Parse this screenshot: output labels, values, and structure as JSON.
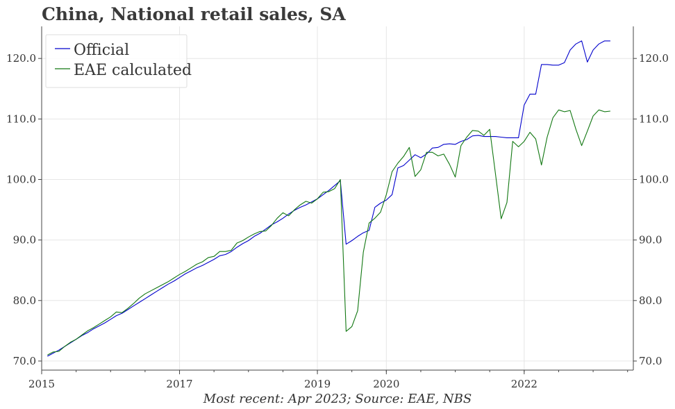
{
  "chart_data": {
    "type": "line",
    "title": "China, National retail sales, SA",
    "caption": "Most recent: Apr 2023; Source: EAE, NBS",
    "xlabel": "",
    "ylabel": "",
    "x_ticks": [
      "2015",
      "2017",
      "2019",
      "2020",
      "2022"
    ],
    "x_tick_years": [
      2015,
      2017,
      2019,
      2020,
      2022
    ],
    "y_ticks": [
      "70.0",
      "80.0",
      "90.0",
      "100.0",
      "110.0",
      "120.0"
    ],
    "y_tick_values": [
      70,
      80,
      90,
      100,
      110,
      120
    ],
    "xlim": [
      "2015-01",
      "2023-08"
    ],
    "ylim": [
      68.5,
      125.3
    ],
    "grid": true,
    "legend_position": "top-left",
    "colors": {
      "Official": "#0000cc",
      "EAE calculated": "#117711"
    },
    "series": [
      {
        "name": "Official",
        "x": [
          "2015-02",
          "2015-03",
          "2015-04",
          "2015-05",
          "2015-06",
          "2015-07",
          "2015-08",
          "2015-09",
          "2015-10",
          "2015-11",
          "2015-12",
          "2016-01",
          "2016-02",
          "2016-03",
          "2016-04",
          "2016-05",
          "2016-06",
          "2016-07",
          "2016-08",
          "2016-09",
          "2016-10",
          "2016-11",
          "2016-12",
          "2017-01",
          "2017-02",
          "2017-03",
          "2017-04",
          "2017-05",
          "2017-06",
          "2017-07",
          "2017-08",
          "2017-09",
          "2017-10",
          "2017-11",
          "2017-12",
          "2018-01",
          "2018-02",
          "2018-03",
          "2018-04",
          "2018-05",
          "2018-06",
          "2018-07",
          "2018-08",
          "2018-09",
          "2018-10",
          "2018-11",
          "2018-12",
          "2019-01",
          "2019-02",
          "2019-03",
          "2019-04",
          "2019-05",
          "2019-06",
          "2019-07",
          "2019-08",
          "2019-09",
          "2019-10",
          "2019-11",
          "2019-12",
          "2020-01",
          "2020-02",
          "2020-03",
          "2020-04",
          "2020-05",
          "2020-06",
          "2020-07",
          "2020-08",
          "2020-09",
          "2020-10",
          "2020-11",
          "2020-12",
          "2021-01",
          "2021-02",
          "2021-03",
          "2021-04",
          "2021-05",
          "2021-06",
          "2021-07",
          "2021-08",
          "2021-09",
          "2021-10",
          "2021-11",
          "2021-12",
          "2022-01",
          "2022-02",
          "2022-03",
          "2022-04",
          "2022-05",
          "2022-06",
          "2022-07",
          "2022-08",
          "2022-09",
          "2022-10",
          "2022-11",
          "2022-12",
          "2023-01",
          "2023-02",
          "2023-03",
          "2023-04"
        ],
        "values": [
          70.8,
          71.3,
          71.8,
          72.4,
          73.0,
          73.6,
          74.2,
          74.7,
          75.3,
          75.8,
          76.3,
          76.9,
          77.5,
          77.9,
          78.5,
          79.1,
          79.7,
          80.3,
          80.9,
          81.5,
          82.1,
          82.7,
          83.2,
          83.8,
          84.4,
          84.9,
          85.4,
          85.8,
          86.3,
          86.8,
          87.4,
          87.6,
          88.1,
          88.8,
          89.4,
          89.9,
          90.6,
          91.1,
          91.8,
          92.5,
          93.0,
          93.6,
          94.3,
          94.9,
          95.4,
          95.8,
          96.3,
          96.8,
          97.5,
          98.2,
          99.0,
          99.8,
          89.3,
          89.9,
          90.6,
          91.2,
          91.6,
          95.4,
          96.1,
          96.6,
          97.5,
          101.9,
          102.3,
          103.2,
          104.1,
          103.6,
          104.2,
          105.2,
          105.3,
          105.8,
          105.9,
          105.8,
          106.3,
          106.6,
          107.2,
          107.3,
          107.1,
          107.1,
          107.1,
          107.0,
          106.9,
          106.9,
          106.9,
          112.3,
          114.1,
          114.1,
          119.0,
          119.0,
          118.9,
          118.9,
          119.3,
          121.4,
          122.4,
          122.9,
          119.4,
          121.4,
          122.4,
          122.9,
          122.9
        ]
      },
      {
        "name": "EAE calculated",
        "x": [
          "2015-02",
          "2015-03",
          "2015-04",
          "2015-05",
          "2015-06",
          "2015-07",
          "2015-08",
          "2015-09",
          "2015-10",
          "2015-11",
          "2015-12",
          "2016-01",
          "2016-02",
          "2016-03",
          "2016-04",
          "2016-05",
          "2016-06",
          "2016-07",
          "2016-08",
          "2016-09",
          "2016-10",
          "2016-11",
          "2016-12",
          "2017-01",
          "2017-02",
          "2017-03",
          "2017-04",
          "2017-05",
          "2017-06",
          "2017-07",
          "2017-08",
          "2017-09",
          "2017-10",
          "2017-11",
          "2017-12",
          "2018-01",
          "2018-02",
          "2018-03",
          "2018-04",
          "2018-05",
          "2018-06",
          "2018-07",
          "2018-08",
          "2018-09",
          "2018-10",
          "2018-11",
          "2018-12",
          "2019-01",
          "2019-02",
          "2019-03",
          "2019-04",
          "2019-05",
          "2019-06",
          "2019-07",
          "2019-08",
          "2019-09",
          "2019-10",
          "2019-11",
          "2019-12",
          "2020-01",
          "2020-02",
          "2020-03",
          "2020-04",
          "2020-05",
          "2020-06",
          "2020-07",
          "2020-08",
          "2020-09",
          "2020-10",
          "2020-11",
          "2020-12",
          "2021-01",
          "2021-02",
          "2021-03",
          "2021-04",
          "2021-05",
          "2021-06",
          "2021-07",
          "2021-08",
          "2021-09",
          "2021-10",
          "2021-11",
          "2021-12",
          "2022-01",
          "2022-02",
          "2022-03",
          "2022-04",
          "2022-05",
          "2022-06",
          "2022-07",
          "2022-08",
          "2022-09",
          "2022-10",
          "2022-11",
          "2022-12",
          "2023-01",
          "2023-02",
          "2023-03",
          "2023-04"
        ],
        "values": [
          71.0,
          71.5,
          71.6,
          72.4,
          73.1,
          73.6,
          74.3,
          75.0,
          75.5,
          76.1,
          76.7,
          77.3,
          78.1,
          78.0,
          78.7,
          79.5,
          80.4,
          81.1,
          81.6,
          82.1,
          82.6,
          83.1,
          83.7,
          84.3,
          84.8,
          85.4,
          86.0,
          86.4,
          87.1,
          87.3,
          88.1,
          88.1,
          88.3,
          89.5,
          89.9,
          90.5,
          91.0,
          91.4,
          91.5,
          92.4,
          93.6,
          94.5,
          94.0,
          95.0,
          95.8,
          96.4,
          96.1,
          96.8,
          97.9,
          98.0,
          98.5,
          100.0,
          74.9,
          75.7,
          78.3,
          88.0,
          92.8,
          93.6,
          94.6,
          97.5,
          101.3,
          102.7,
          103.8,
          105.3,
          100.5,
          101.6,
          104.5,
          104.5,
          103.9,
          104.2,
          102.5,
          100.4,
          105.6,
          107.0,
          108.1,
          108.0,
          107.3,
          108.3,
          100.9,
          93.5,
          96.2,
          106.3,
          105.4,
          106.3,
          107.8,
          106.7,
          102.4,
          107.0,
          110.2,
          111.5,
          111.2,
          111.4,
          108.3,
          105.6,
          108.0,
          110.5,
          111.5,
          111.2,
          111.3
        ]
      }
    ]
  }
}
